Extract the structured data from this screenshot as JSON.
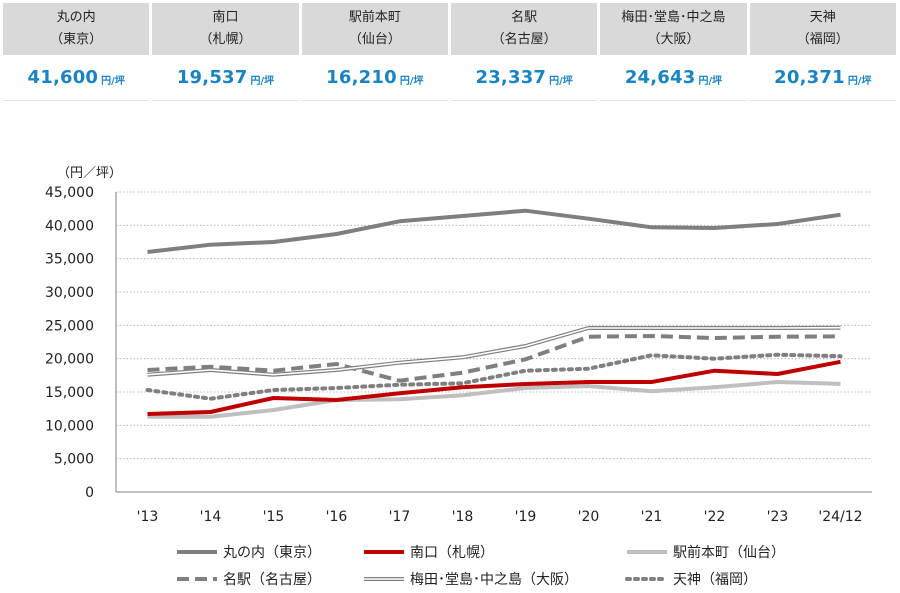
{
  "cards": [
    {
      "name": "丸の内",
      "sub": "（東京）",
      "value": "41,600",
      "unit": "円/坪"
    },
    {
      "name": "南口",
      "sub": "（札幌）",
      "value": "19,537",
      "unit": "円/坪"
    },
    {
      "name": "駅前本町",
      "sub": "（仙台）",
      "value": "16,210",
      "unit": "円/坪"
    },
    {
      "name": "名駅",
      "sub": "（名古屋）",
      "value": "23,337",
      "unit": "円/坪"
    },
    {
      "name": "梅田･堂島･中之島",
      "sub": "（大阪）",
      "value": "24,643",
      "unit": "円/坪"
    },
    {
      "name": "天神",
      "sub": "（福岡）",
      "value": "20,371",
      "unit": "円/坪"
    }
  ],
  "chart_data": {
    "type": "line",
    "ylabel": "（円／坪）",
    "ylim": [
      0,
      45000
    ],
    "yticks": [
      0,
      5000,
      10000,
      15000,
      20000,
      25000,
      30000,
      35000,
      40000,
      45000
    ],
    "ytick_labels": [
      "0",
      "5,000",
      "10,000",
      "15,000",
      "20,000",
      "25,000",
      "30,000",
      "35,000",
      "40,000",
      "45,000"
    ],
    "categories": [
      "'13",
      "'14",
      "'15",
      "'16",
      "'17",
      "'18",
      "'19",
      "'20",
      "'21",
      "'22",
      "'23",
      "'24/12"
    ],
    "grid": "horizontal dotted",
    "legend_position": "bottom",
    "series": [
      {
        "name": "丸の内（東京）",
        "style": "thick-solid",
        "color": "#7f7f7f",
        "values": [
          36000,
          37100,
          37500,
          38700,
          40600,
          41400,
          42200,
          41000,
          39700,
          39600,
          40200,
          41600
        ]
      },
      {
        "name": "南口（札幌）",
        "style": "thick-solid",
        "color": "#c00000",
        "values": [
          11700,
          12000,
          14100,
          13800,
          14800,
          15700,
          16200,
          16500,
          16500,
          18200,
          17700,
          19537
        ]
      },
      {
        "name": "駅前本町（仙台）",
        "style": "thick-solid",
        "color": "#bfbfbf",
        "values": [
          11300,
          11300,
          12300,
          13800,
          13900,
          14500,
          15600,
          15900,
          15100,
          15700,
          16500,
          16210
        ]
      },
      {
        "name": "名駅（名古屋）",
        "style": "dashed",
        "color": "#7f7f7f",
        "values": [
          18300,
          18800,
          18200,
          19200,
          16700,
          17900,
          19900,
          23300,
          23400,
          23100,
          23300,
          23337
        ]
      },
      {
        "name": "梅田･堂島･中之島（大阪）",
        "style": "double",
        "color": "#7f7f7f",
        "values": [
          17600,
          18300,
          17600,
          18300,
          19400,
          20200,
          21900,
          24600,
          24600,
          24600,
          24600,
          24643
        ]
      },
      {
        "name": "天神（福岡）",
        "style": "dotted",
        "color": "#7f7f7f",
        "values": [
          15300,
          14000,
          15300,
          15600,
          16100,
          16300,
          18200,
          18500,
          20500,
          20000,
          20600,
          20371
        ]
      }
    ]
  }
}
